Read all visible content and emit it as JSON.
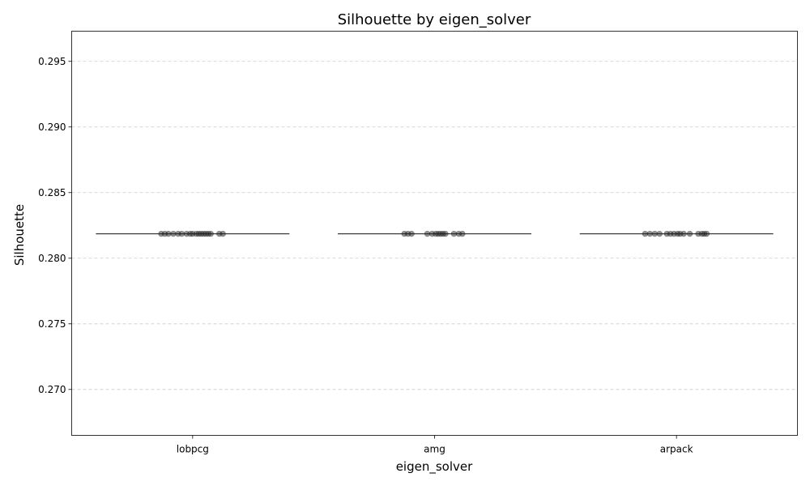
{
  "chart_data": {
    "type": "box",
    "title": "Silhouette by eigen_solver",
    "xlabel": "eigen_solver",
    "ylabel": "Silhouette",
    "categories": [
      "lobpcg",
      "amg",
      "arpack"
    ],
    "median": 0.28186,
    "ylim": [
      0.2665,
      0.2973
    ],
    "yticks": [
      0.27,
      0.275,
      0.28,
      0.285,
      0.29,
      0.295
    ],
    "ytick_labels": [
      "0.270",
      "0.275",
      "0.280",
      "0.285",
      "0.290",
      "0.295"
    ],
    "grid": "y-dashed",
    "points": [
      {
        "category": "lobpcg",
        "y": 0.28186,
        "x_offsets": [
          -0.26,
          -0.23,
          -0.2,
          -0.16,
          -0.12,
          -0.09,
          -0.05,
          -0.02,
          0.0,
          0.03,
          0.05,
          0.07,
          0.09,
          0.11,
          0.13,
          0.15,
          0.22,
          0.25
        ]
      },
      {
        "category": "amg",
        "y": 0.28186,
        "x_offsets": [
          -0.25,
          -0.22,
          -0.19,
          -0.06,
          -0.02,
          0.01,
          0.03,
          0.05,
          0.07,
          0.09,
          0.16,
          0.2,
          0.23
        ]
      },
      {
        "category": "arpack",
        "y": 0.28186,
        "x_offsets": [
          -0.26,
          -0.22,
          -0.18,
          -0.14,
          -0.08,
          -0.05,
          -0.02,
          0.01,
          0.03,
          0.06,
          0.11,
          0.18,
          0.21,
          0.23,
          0.25
        ]
      }
    ],
    "colors": {
      "box": "#3d3d3d",
      "points": "#222222",
      "grid": "#cccccc"
    }
  }
}
